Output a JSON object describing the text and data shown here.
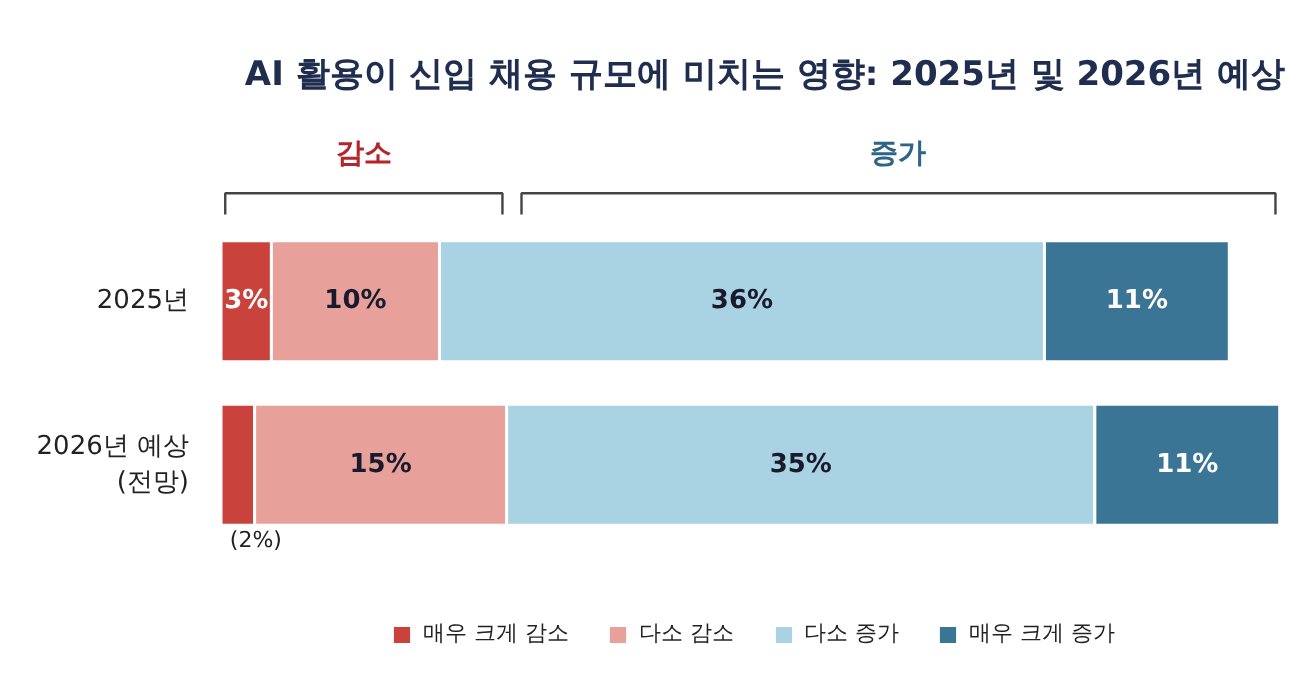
{
  "chart_data": {
    "type": "bar",
    "orientation": "horizontal",
    "stacked": true,
    "title": "AI 활용이 신입 채용 규모에 미치는 영향: 2025년 및 2026년 예상",
    "categories": [
      "2025년",
      "2026년 예상\n(전망)"
    ],
    "series": [
      {
        "name": "매우 크게 감소",
        "color": "#c9433c",
        "values": [
          3,
          2
        ],
        "value_labels": [
          "3%",
          "(2%)"
        ]
      },
      {
        "name": "다소 감소",
        "color": "#e8a19a",
        "values": [
          10,
          15
        ],
        "value_labels": [
          "10%",
          "15%"
        ]
      },
      {
        "name": "다소 증가",
        "color": "#a9d2e2",
        "values": [
          36,
          35
        ],
        "value_labels": [
          "36%",
          "35%"
        ]
      },
      {
        "name": "매우 크게 증가",
        "color": "#3b7596",
        "values": [
          11,
          11
        ],
        "value_labels": [
          "11%",
          "11%"
        ]
      }
    ],
    "annotations": [
      "감소",
      "증가"
    ],
    "legend": "bottom",
    "tick_labels": "y",
    "grid": false
  }
}
